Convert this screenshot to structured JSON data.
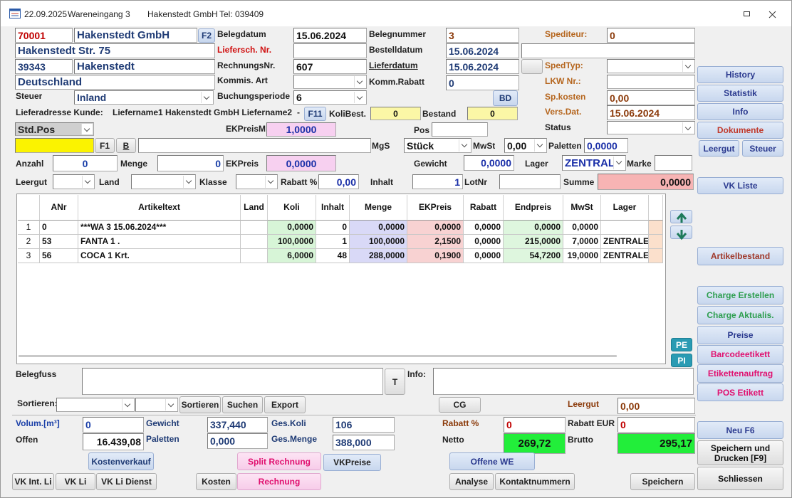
{
  "titlebar": {
    "date": "22.09.2025",
    "module": "Wareneingang 3",
    "company": "Hakenstedt GmbH",
    "phone": "Tel: 039409"
  },
  "form": {
    "supplier_number": "70001",
    "supplier_name": "Hakenstedt GmbH",
    "street": "Hakenstedt Str. 75",
    "zip": "39343",
    "city": "Hakenstedt",
    "country": "Deutschland",
    "tax_l": "Steuer",
    "tax": "Inland",
    "delivery_l": "Lieferadresse Kunde:",
    "delivery": "Liefername1 Hakenstedt GmbH Liefername2",
    "delivery_sep": "-",
    "f2": "F2",
    "belegdatum_l": "Belegdatum",
    "belegdatum": "15.06.2024",
    "belegnummer_l": "Belegnummer",
    "belegnummer": "3",
    "spediteur_l": "Spediteur:",
    "spediteur": "0",
    "lieferschein_l": "Liefersch. Nr.",
    "bestelldatum_l": "Bestelldatum",
    "bestelldatum": "15.06.2024",
    "rechnungsnr_l": "RechnungsNr.",
    "rechnungsnr": "607",
    "lieferdatum_l": "Lieferdatum",
    "lieferdatum": "15.06.2024",
    "spedtyp_l": "SpedTyp:",
    "kommis_l": "Kommis. Art",
    "kommrabatt_l": "Komm.Rabatt",
    "kommrabatt": "0",
    "lkw_l": "LKW Nr.:",
    "buchung_l": "Buchungsperiode",
    "buchung": "6",
    "bd": "BD",
    "spkosten_l": "Sp.kosten",
    "spkosten": "0,00",
    "f11": "F11",
    "kolibest_l": "KoliBest.",
    "kolibest": "0",
    "bestand_l": "Bestand",
    "bestand": "0",
    "versdat_l": "Vers.Dat.",
    "versdat": "15.06.2024",
    "postype": "Std.Pos",
    "ekpreism_l": "EKPreisM",
    "ekpreism": "1,0000",
    "pos_l": "Pos",
    "status_l": "Status",
    "f1": "F1",
    "b": "B",
    "mgs_l": "MgS",
    "unit": "Stück",
    "mwst_l": "MwSt",
    "mwst": "0,00",
    "paletten_l": "Paletten",
    "paletten": "0,0000",
    "anzahl_l": "Anzahl",
    "anzahl": "0",
    "menge_l": "Menge",
    "menge": "0",
    "ekpreis_l": "EKPreis",
    "ekpreis": "0,0000",
    "gewicht_l": "Gewicht",
    "gewicht": "0,0000",
    "lager_l": "Lager",
    "lager": "ZENTRAL",
    "marke_l": "Marke",
    "leergut_l": "Leergut",
    "land_l": "Land",
    "klasse_l": "Klasse",
    "rabatt_l": "Rabatt %",
    "rabatt": "0,00",
    "inhalt_l": "Inhalt",
    "inhalt": "1",
    "lotnr_l": "LotNr",
    "summe_l": "Summe",
    "summe": "0,0000"
  },
  "grid": {
    "columns": [
      "ANr",
      "Artikeltext",
      "Land",
      "Koli",
      "Inhalt",
      "Menge",
      "EKPreis",
      "Rabatt",
      "Endpreis",
      "MwSt",
      "Lager"
    ],
    "rows": [
      {
        "nr": "1",
        "cells": [
          "0",
          "***WA 3 15.06.2024***",
          null,
          "0,0000",
          "0",
          "0,0000",
          "0,0000",
          "0,0000",
          "0,0000",
          "0,0000",
          null
        ]
      },
      {
        "nr": "2",
        "cells": [
          "53",
          "FANTA 1 .",
          null,
          "100,0000",
          "1",
          "100,0000",
          "2,1500",
          "0,0000",
          "215,0000",
          "7,0000",
          "ZENTRALE"
        ]
      },
      {
        "nr": "3",
        "cells": [
          "56",
          "COCA 1 Krt.",
          null,
          "6,0000",
          "48",
          "288,0000",
          "0,1900",
          "0,0000",
          "54,7200",
          "19,0000",
          "ZENTRALE"
        ]
      }
    ],
    "pe": "PE",
    "pi": "PI"
  },
  "footer": {
    "belegfuss_l": "Belegfuss",
    "t": "T",
    "info_l": "Info:",
    "sortieren_l": "Sortieren:",
    "sortieren": "Sortieren",
    "suchen": "Suchen",
    "export": "Export",
    "cg": "CG",
    "leergut_l": "Leergut",
    "leergut": "0,00",
    "volum_l": "Volum.[m³]",
    "volum": "0",
    "gewicht_l": "Gewicht",
    "gewicht": "337,440",
    "geskoli_l": "Ges.Koli",
    "geskoli": "106",
    "rabattp_l": "Rabatt %",
    "rabattp": "0",
    "rabatteur_l": "Rabatt EUR",
    "rabatteur": "0",
    "offen_l": "Offen",
    "offen": "16.439,08",
    "paletten_l": "Paletten",
    "paletten": "0,000",
    "gesmenge_l": "Ges.Menge",
    "gesmenge": "388,000",
    "netto_l": "Netto",
    "netto": "269,72",
    "brutto_l": "Brutto",
    "brutto": "295,17"
  },
  "buttons": {
    "kostenverkauf": "Kostenverkauf",
    "split": "Split Rechnung",
    "vkpreise": "VKPreise",
    "offenewe": "Offene WE",
    "vkint": "VK Int. Li",
    "vkli": "VK Li",
    "vklidienst": "VK  Li Dienst",
    "kosten": "Kosten",
    "rechnung": "Rechnung",
    "analyse": "Analyse",
    "kontakt": "Kontaktnummern",
    "speichern": "Speichern"
  },
  "side_buttons": {
    "history": "History",
    "statistik": "Statistik",
    "info": "Info",
    "dokumente": "Dokumente",
    "leergut": "Leergut",
    "steuer": "Steuer",
    "vkliste": "VK Liste",
    "artikelbestand": "Artikelbestand",
    "charge_erstellen": "Charge Erstellen",
    "charge_aktualis": "Charge Aktualis.",
    "preise": "Preise",
    "barcode": "Barcodeetikett",
    "etikettenauftrag": "Etikettenauftrag",
    "pos": "POS Etikett",
    "neu": "Neu F6",
    "speichern_drucken": "Speichern und Drucken [F9]",
    "schliessen": "Schliessen"
  }
}
